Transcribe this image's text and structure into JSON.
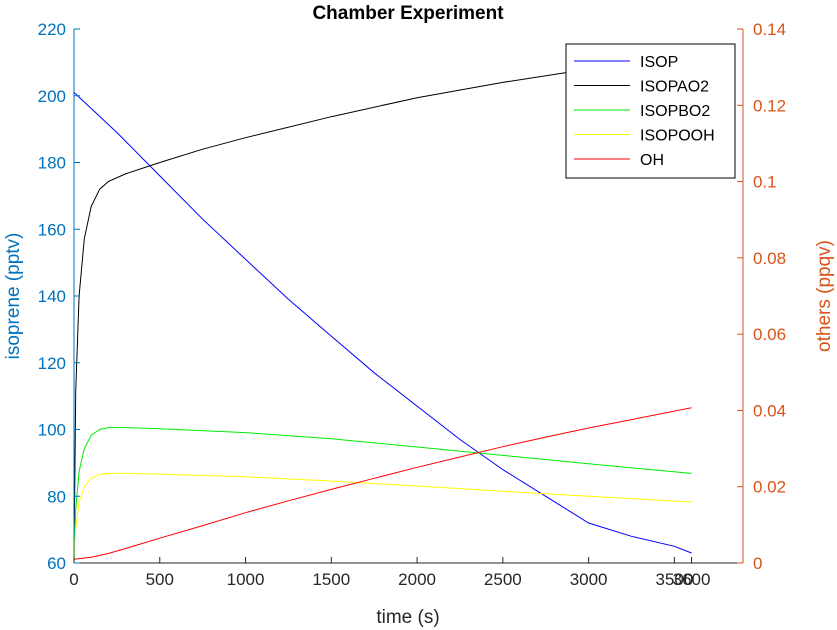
{
  "chart_data": {
    "type": "line",
    "title": "Chamber Experiment",
    "xlabel": "time (s)",
    "ylabel_left": "isoprene (pptv)",
    "ylabel_right": "others (ppqv)",
    "xlim": [
      0,
      3900
    ],
    "x_ticks": [
      "0",
      "500",
      "1000",
      "1500",
      "2000",
      "2500",
      "3000",
      "3500",
      "3600"
    ],
    "ylim_left": [
      60,
      220
    ],
    "y_ticks_left": [
      "60",
      "80",
      "100",
      "120",
      "140",
      "160",
      "180",
      "200",
      "220"
    ],
    "ylim_right": [
      0,
      0.14
    ],
    "y_ticks_right": [
      "0",
      "0.02",
      "0.04",
      "0.06",
      "0.08",
      "0.1",
      "0.12",
      "0.14"
    ],
    "legend_position": "top-right",
    "colors": {
      "left_axis": "#0072BD",
      "right_axis": "#D95319",
      "ISOP": "#0000ff",
      "ISOPAO2": "#000000",
      "ISOPBO2": "#00ee00",
      "ISOPOOH": "#ffff00",
      "OH": "#ff0000"
    },
    "series": [
      {
        "name": "ISOP",
        "axis": "left",
        "x": [
          0,
          250,
          500,
          750,
          1000,
          1250,
          1500,
          1750,
          2000,
          2250,
          2500,
          2750,
          3000,
          3250,
          3500,
          3600
        ],
        "y": [
          201,
          189,
          176,
          163,
          151,
          139,
          128,
          117,
          107,
          97,
          88,
          80,
          72,
          68,
          65,
          63
        ]
      },
      {
        "name": "ISOPAO2",
        "axis": "right",
        "x": [
          0,
          10,
          30,
          60,
          100,
          150,
          200,
          300,
          500,
          750,
          1000,
          1500,
          2000,
          2500,
          3000,
          3200,
          3600
        ],
        "y": [
          0,
          0.045,
          0.07,
          0.085,
          0.0935,
          0.098,
          0.1,
          0.102,
          0.105,
          0.1085,
          0.1115,
          0.117,
          0.122,
          0.126,
          0.1295,
          0.131,
          0.133
        ]
      },
      {
        "name": "ISOPBO2",
        "axis": "right",
        "x": [
          0,
          10,
          30,
          60,
          100,
          150,
          200,
          300,
          500,
          1000,
          1500,
          2000,
          2500,
          3000,
          3600
        ],
        "y": [
          0,
          0.014,
          0.024,
          0.03,
          0.0335,
          0.035,
          0.0355,
          0.0355,
          0.0352,
          0.0342,
          0.0326,
          0.0304,
          0.0282,
          0.026,
          0.0235
        ]
      },
      {
        "name": "ISOPOOH",
        "axis": "right",
        "x": [
          0,
          10,
          30,
          60,
          100,
          150,
          200,
          300,
          500,
          1000,
          1500,
          2000,
          2500,
          3000,
          3600
        ],
        "y": [
          0,
          0.009,
          0.016,
          0.02,
          0.0222,
          0.0232,
          0.0235,
          0.0235,
          0.0233,
          0.0226,
          0.0215,
          0.0202,
          0.0188,
          0.0175,
          0.016
        ]
      },
      {
        "name": "OH",
        "axis": "right",
        "x": [
          0,
          100,
          200,
          300,
          500,
          750,
          1000,
          1250,
          1500,
          1750,
          2000,
          2250,
          2500,
          2750,
          3000,
          3250,
          3600
        ],
        "y": [
          0.001,
          0.0015,
          0.0025,
          0.0038,
          0.0065,
          0.0098,
          0.0132,
          0.0163,
          0.0193,
          0.0222,
          0.0251,
          0.0278,
          0.0305,
          0.033,
          0.0354,
          0.0376,
          0.0407
        ]
      }
    ]
  }
}
